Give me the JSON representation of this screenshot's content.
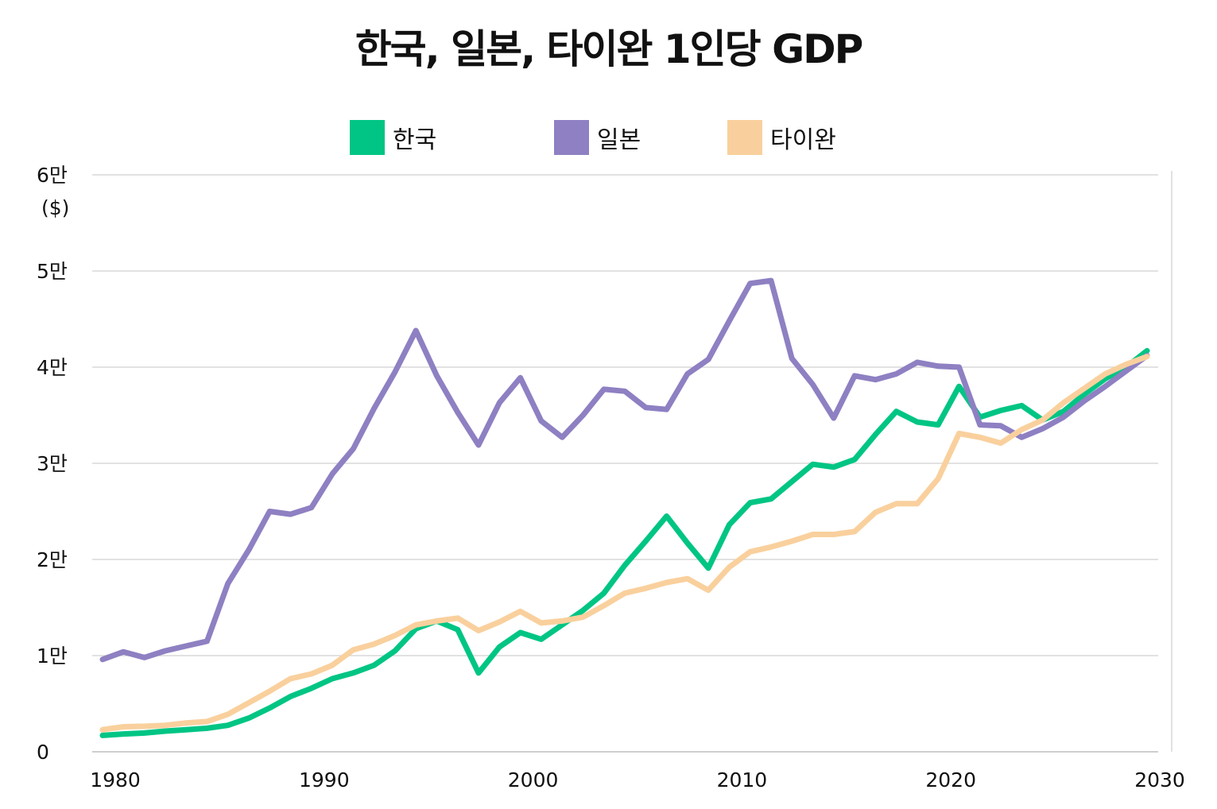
{
  "chart_data": {
    "type": "line",
    "title": "한국, 일본, 타이완 1인당 GDP",
    "ylabel": "($)",
    "x": [
      1980,
      1981,
      1982,
      1983,
      1984,
      1985,
      1986,
      1987,
      1988,
      1989,
      1990,
      1991,
      1992,
      1993,
      1994,
      1995,
      1996,
      1997,
      1998,
      1999,
      2000,
      2001,
      2002,
      2003,
      2004,
      2005,
      2006,
      2007,
      2008,
      2009,
      2010,
      2011,
      2012,
      2013,
      2014,
      2015,
      2016,
      2017,
      2018,
      2019,
      2020,
      2021,
      2022,
      2023,
      2024,
      2025,
      2026,
      2027,
      2028,
      2029,
      2030
    ],
    "xlim": [
      1980,
      2030
    ],
    "ylim": [
      0,
      60000
    ],
    "x_ticks": [
      1980,
      1990,
      2000,
      2010,
      2020,
      2030
    ],
    "x_tick_labels": [
      "1980",
      "1990",
      "2000",
      "2010",
      "2020",
      "2030"
    ],
    "y_ticks": [
      0,
      10000,
      20000,
      30000,
      40000,
      50000,
      60000
    ],
    "y_tick_labels": [
      "0",
      "1만",
      "2만",
      "3만",
      "4만",
      "5만",
      "6만"
    ],
    "grid": "horizontal",
    "legend_position": "top-center",
    "series": [
      {
        "name": "한국",
        "color": "#00c584",
        "values": [
          1700,
          1850,
          1950,
          2150,
          2300,
          2450,
          2750,
          3500,
          4550,
          5750,
          6600,
          7600,
          8200,
          9000,
          10500,
          12800,
          13600,
          12700,
          8200,
          10900,
          12400,
          11700,
          13200,
          14700,
          16500,
          19400,
          21900,
          24500,
          21700,
          19100,
          23600,
          25900,
          26300,
          28100,
          29900,
          29600,
          30400,
          33000,
          35400,
          34300,
          34000,
          38000,
          34800,
          35500,
          36000,
          34500,
          35400,
          37200,
          38800,
          40000,
          41700
        ]
      },
      {
        "name": "일본",
        "color": "#8e80c2",
        "values": [
          9600,
          10400,
          9800,
          10500,
          11000,
          11500,
          17500,
          21000,
          25000,
          24700,
          25400,
          28900,
          31500,
          35700,
          39500,
          43800,
          39100,
          35300,
          31900,
          36300,
          38900,
          34400,
          32700,
          35000,
          37700,
          37500,
          35800,
          35600,
          39300,
          40800,
          44800,
          48700,
          49000,
          40900,
          38200,
          34700,
          39100,
          38700,
          39300,
          40500,
          40100,
          40000,
          34000,
          33900,
          32700,
          33600,
          34800,
          36500,
          38000,
          39600,
          41200
        ]
      },
      {
        "name": "타이완",
        "color": "#f9d09d",
        "values": [
          2300,
          2600,
          2650,
          2750,
          3000,
          3150,
          3900,
          5100,
          6300,
          7600,
          8100,
          9000,
          10600,
          11200,
          12100,
          13200,
          13600,
          13900,
          12600,
          13500,
          14600,
          13400,
          13600,
          14000,
          15200,
          16500,
          17000,
          17600,
          18000,
          16800,
          19200,
          20800,
          21300,
          21900,
          22600,
          22600,
          22900,
          24900,
          25800,
          25800,
          28400,
          33100,
          32700,
          32100,
          33500,
          34500,
          36300,
          37800,
          39300,
          40300,
          41100
        ]
      }
    ]
  }
}
